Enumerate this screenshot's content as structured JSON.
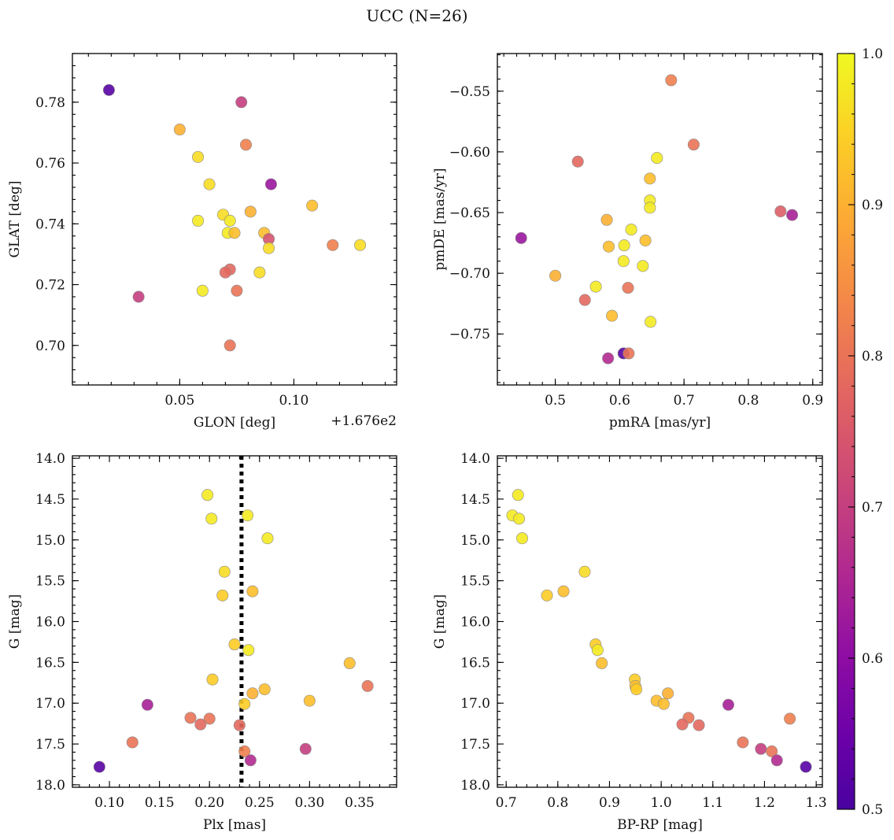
{
  "title": "UCC (N=26)",
  "colorbar": {
    "min": 0.5,
    "max": 1.0,
    "ticks": [
      "0.5",
      "0.6",
      "0.7",
      "0.8",
      "0.9",
      "1.0"
    ],
    "colormap": "plasma"
  },
  "chart_data": [
    {
      "type": "scatter",
      "xlabel": "GLON [deg]",
      "ylabel": "GLAT [deg]",
      "offset_label": "+1.676e2",
      "xlim": [
        0.003,
        0.145
      ],
      "ylim": [
        0.687,
        0.796
      ],
      "xticks": [
        0.05,
        0.1
      ],
      "xtick_labels": [
        "0.05",
        "0.10"
      ],
      "yticks": [
        0.7,
        0.72,
        0.74,
        0.76,
        0.78
      ],
      "ytick_labels": [
        "0.70",
        "0.72",
        "0.74",
        "0.76",
        "0.78"
      ],
      "points": [
        {
          "x": 0.019,
          "y": 0.784,
          "c": 0.52
        },
        {
          "x": 0.05,
          "y": 0.771,
          "c": 0.9
        },
        {
          "x": 0.058,
          "y": 0.762,
          "c": 0.96
        },
        {
          "x": 0.063,
          "y": 0.753,
          "c": 0.96
        },
        {
          "x": 0.077,
          "y": 0.78,
          "c": 0.7
        },
        {
          "x": 0.079,
          "y": 0.766,
          "c": 0.82
        },
        {
          "x": 0.09,
          "y": 0.753,
          "c": 0.62
        },
        {
          "x": 0.108,
          "y": 0.746,
          "c": 0.92
        },
        {
          "x": 0.081,
          "y": 0.744,
          "c": 0.9
        },
        {
          "x": 0.069,
          "y": 0.743,
          "c": 0.96
        },
        {
          "x": 0.072,
          "y": 0.741,
          "c": 0.98
        },
        {
          "x": 0.058,
          "y": 0.741,
          "c": 0.98
        },
        {
          "x": 0.071,
          "y": 0.737,
          "c": 0.98
        },
        {
          "x": 0.074,
          "y": 0.737,
          "c": 0.92
        },
        {
          "x": 0.087,
          "y": 0.737,
          "c": 0.92
        },
        {
          "x": 0.089,
          "y": 0.735,
          "c": 0.74
        },
        {
          "x": 0.089,
          "y": 0.732,
          "c": 0.96
        },
        {
          "x": 0.117,
          "y": 0.733,
          "c": 0.82
        },
        {
          "x": 0.129,
          "y": 0.733,
          "c": 0.96
        },
        {
          "x": 0.072,
          "y": 0.725,
          "c": 0.78
        },
        {
          "x": 0.07,
          "y": 0.724,
          "c": 0.78
        },
        {
          "x": 0.085,
          "y": 0.724,
          "c": 0.96
        },
        {
          "x": 0.06,
          "y": 0.718,
          "c": 0.98
        },
        {
          "x": 0.075,
          "y": 0.718,
          "c": 0.8
        },
        {
          "x": 0.032,
          "y": 0.716,
          "c": 0.7
        },
        {
          "x": 0.072,
          "y": 0.7,
          "c": 0.8
        }
      ]
    },
    {
      "type": "scatter",
      "xlabel": "pmRA [mas/yr]",
      "ylabel": "pmDE [mas/yr]",
      "xlim": [
        0.41,
        0.915
      ],
      "ylim": [
        -0.792,
        -0.519
      ],
      "xticks": [
        0.5,
        0.6,
        0.7,
        0.8,
        0.9
      ],
      "xtick_labels": [
        "0.5",
        "0.6",
        "0.7",
        "0.8",
        "0.9"
      ],
      "yticks": [
        -0.75,
        -0.7,
        -0.65,
        -0.6,
        -0.55
      ],
      "ytick_labels": [
        "−0.75",
        "−0.70",
        "−0.65",
        "−0.60",
        "−0.55"
      ],
      "points": [
        {
          "x": 0.68,
          "y": -0.541,
          "c": 0.82
        },
        {
          "x": 0.715,
          "y": -0.594,
          "c": 0.8
        },
        {
          "x": 0.535,
          "y": -0.608,
          "c": 0.78
        },
        {
          "x": 0.658,
          "y": -0.605,
          "c": 0.98
        },
        {
          "x": 0.647,
          "y": -0.622,
          "c": 0.92
        },
        {
          "x": 0.647,
          "y": -0.64,
          "c": 0.98
        },
        {
          "x": 0.647,
          "y": -0.646,
          "c": 0.98
        },
        {
          "x": 0.85,
          "y": -0.649,
          "c": 0.76
        },
        {
          "x": 0.868,
          "y": -0.652,
          "c": 0.64
        },
        {
          "x": 0.58,
          "y": -0.656,
          "c": 0.9
        },
        {
          "x": 0.618,
          "y": -0.664,
          "c": 0.98
        },
        {
          "x": 0.447,
          "y": -0.671,
          "c": 0.62
        },
        {
          "x": 0.64,
          "y": -0.673,
          "c": 0.92
        },
        {
          "x": 0.607,
          "y": -0.677,
          "c": 0.98
        },
        {
          "x": 0.583,
          "y": -0.678,
          "c": 0.92
        },
        {
          "x": 0.606,
          "y": -0.69,
          "c": 0.98
        },
        {
          "x": 0.636,
          "y": -0.694,
          "c": 0.98
        },
        {
          "x": 0.5,
          "y": -0.702,
          "c": 0.9
        },
        {
          "x": 0.563,
          "y": -0.711,
          "c": 0.98
        },
        {
          "x": 0.613,
          "y": -0.712,
          "c": 0.8
        },
        {
          "x": 0.546,
          "y": -0.722,
          "c": 0.78
        },
        {
          "x": 0.588,
          "y": -0.735,
          "c": 0.92
        },
        {
          "x": 0.648,
          "y": -0.74,
          "c": 0.98
        },
        {
          "x": 0.606,
          "y": -0.766,
          "c": 0.52
        },
        {
          "x": 0.614,
          "y": -0.766,
          "c": 0.8
        },
        {
          "x": 0.582,
          "y": -0.77,
          "c": 0.66
        }
      ]
    },
    {
      "type": "scatter",
      "xlabel": "Plx [mas]",
      "ylabel": "G [mag]",
      "xlim": [
        0.063,
        0.387
      ],
      "ylim": [
        18.03,
        13.97
      ],
      "y_inverted": true,
      "vline": {
        "x": 0.232,
        "style": "dotted"
      },
      "xticks": [
        0.1,
        0.15,
        0.2,
        0.25,
        0.3,
        0.35
      ],
      "xtick_labels": [
        "0.10",
        "0.15",
        "0.20",
        "0.25",
        "0.30",
        "0.35"
      ],
      "yticks": [
        14.0,
        14.5,
        15.0,
        15.5,
        16.0,
        16.5,
        17.0,
        17.5,
        18.0
      ],
      "ytick_labels": [
        "14.0",
        "14.5",
        "15.0",
        "15.5",
        "16.0",
        "16.5",
        "17.0",
        "17.5",
        "18.0"
      ],
      "points": [
        {
          "x": 0.198,
          "y": 14.45,
          "c": 0.98
        },
        {
          "x": 0.202,
          "y": 14.74,
          "c": 0.98
        },
        {
          "x": 0.238,
          "y": 14.7,
          "c": 0.98
        },
        {
          "x": 0.258,
          "y": 14.98,
          "c": 0.98
        },
        {
          "x": 0.215,
          "y": 15.39,
          "c": 0.96
        },
        {
          "x": 0.243,
          "y": 15.63,
          "c": 0.92
        },
        {
          "x": 0.213,
          "y": 15.68,
          "c": 0.94
        },
        {
          "x": 0.225,
          "y": 16.28,
          "c": 0.94
        },
        {
          "x": 0.239,
          "y": 16.35,
          "c": 0.98
        },
        {
          "x": 0.34,
          "y": 16.51,
          "c": 0.92
        },
        {
          "x": 0.203,
          "y": 16.71,
          "c": 0.94
        },
        {
          "x": 0.358,
          "y": 16.79,
          "c": 0.8
        },
        {
          "x": 0.255,
          "y": 16.83,
          "c": 0.92
        },
        {
          "x": 0.243,
          "y": 16.88,
          "c": 0.9
        },
        {
          "x": 0.3,
          "y": 16.97,
          "c": 0.92
        },
        {
          "x": 0.235,
          "y": 17.01,
          "c": 0.94
        },
        {
          "x": 0.138,
          "y": 17.02,
          "c": 0.64
        },
        {
          "x": 0.181,
          "y": 17.18,
          "c": 0.8
        },
        {
          "x": 0.2,
          "y": 17.19,
          "c": 0.8
        },
        {
          "x": 0.191,
          "y": 17.26,
          "c": 0.78
        },
        {
          "x": 0.23,
          "y": 17.27,
          "c": 0.78
        },
        {
          "x": 0.123,
          "y": 17.48,
          "c": 0.8
        },
        {
          "x": 0.296,
          "y": 17.56,
          "c": 0.7
        },
        {
          "x": 0.235,
          "y": 17.59,
          "c": 0.82
        },
        {
          "x": 0.241,
          "y": 17.7,
          "c": 0.66
        },
        {
          "x": 0.09,
          "y": 17.78,
          "c": 0.52
        }
      ]
    },
    {
      "type": "scatter",
      "xlabel": "BP-RP [mag]",
      "ylabel": "G [mag]",
      "xlim": [
        0.683,
        1.312
      ],
      "ylim": [
        18.03,
        13.97
      ],
      "y_inverted": true,
      "xticks": [
        0.7,
        0.8,
        0.9,
        1.0,
        1.1,
        1.2,
        1.3
      ],
      "xtick_labels": [
        "0.7",
        "0.8",
        "0.9",
        "1.0",
        "1.1",
        "1.2",
        "1.3"
      ],
      "yticks": [
        14.0,
        14.5,
        15.0,
        15.5,
        16.0,
        16.5,
        17.0,
        17.5,
        18.0
      ],
      "ytick_labels": [
        "14.0",
        "14.5",
        "15.0",
        "15.5",
        "16.0",
        "16.5",
        "17.0",
        "17.5",
        "18.0"
      ],
      "points": [
        {
          "x": 0.723,
          "y": 14.45,
          "c": 0.98
        },
        {
          "x": 0.712,
          "y": 14.7,
          "c": 0.98
        },
        {
          "x": 0.725,
          "y": 14.74,
          "c": 0.98
        },
        {
          "x": 0.731,
          "y": 14.98,
          "c": 0.98
        },
        {
          "x": 0.852,
          "y": 15.39,
          "c": 0.96
        },
        {
          "x": 0.779,
          "y": 15.68,
          "c": 0.94
        },
        {
          "x": 0.811,
          "y": 15.63,
          "c": 0.92
        },
        {
          "x": 0.873,
          "y": 16.28,
          "c": 0.94
        },
        {
          "x": 0.877,
          "y": 16.35,
          "c": 0.98
        },
        {
          "x": 0.885,
          "y": 16.51,
          "c": 0.92
        },
        {
          "x": 0.949,
          "y": 16.71,
          "c": 0.94
        },
        {
          "x": 0.95,
          "y": 16.79,
          "c": 0.92
        },
        {
          "x": 0.952,
          "y": 16.83,
          "c": 0.94
        },
        {
          "x": 1.013,
          "y": 16.88,
          "c": 0.9
        },
        {
          "x": 0.991,
          "y": 16.97,
          "c": 0.92
        },
        {
          "x": 1.005,
          "y": 17.01,
          "c": 0.92
        },
        {
          "x": 1.13,
          "y": 17.02,
          "c": 0.64
        },
        {
          "x": 1.053,
          "y": 17.18,
          "c": 0.8
        },
        {
          "x": 1.249,
          "y": 17.19,
          "c": 0.82
        },
        {
          "x": 1.041,
          "y": 17.26,
          "c": 0.78
        },
        {
          "x": 1.073,
          "y": 17.27,
          "c": 0.78
        },
        {
          "x": 1.158,
          "y": 17.48,
          "c": 0.8
        },
        {
          "x": 1.193,
          "y": 17.56,
          "c": 0.7
        },
        {
          "x": 1.214,
          "y": 17.59,
          "c": 0.8
        },
        {
          "x": 1.224,
          "y": 17.7,
          "c": 0.66
        },
        {
          "x": 1.28,
          "y": 17.78,
          "c": 0.52
        }
      ]
    }
  ]
}
